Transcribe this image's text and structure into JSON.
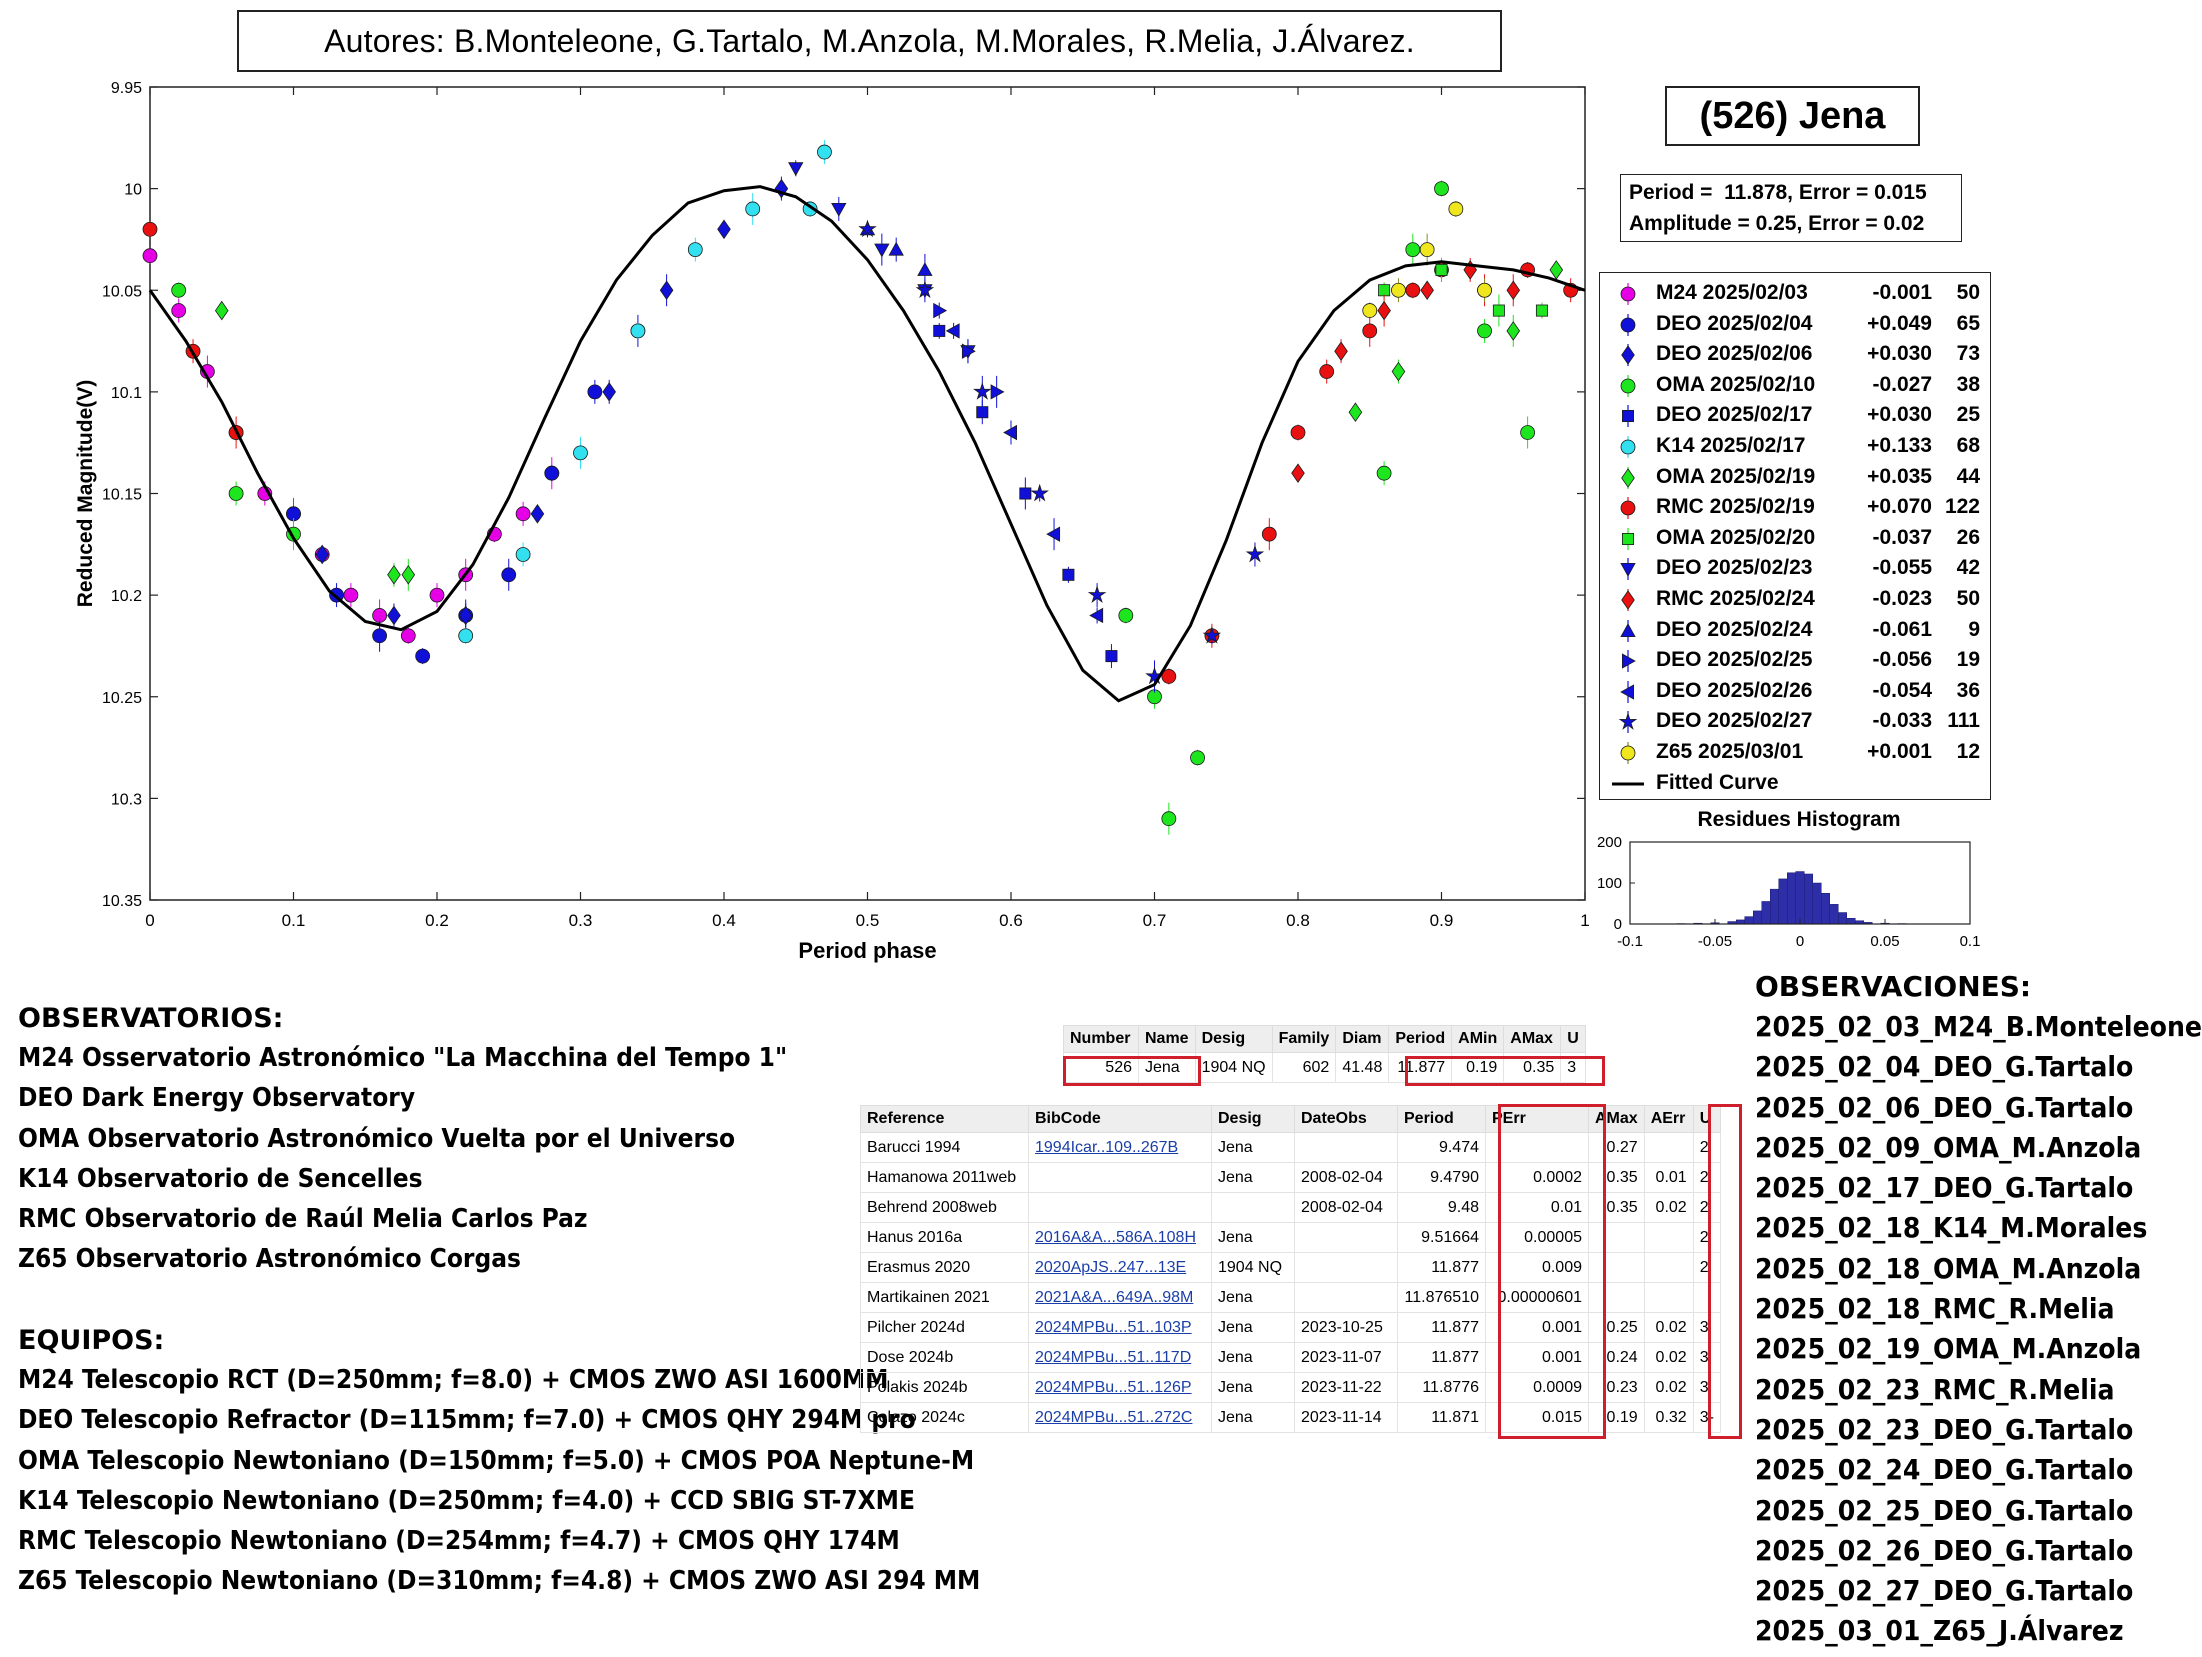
{
  "header": {
    "authors": "Autores: B.Monteleone, G.Tartalo, M.Anzola, M.Morales, R.Melia, J.Álvarez.",
    "asteroid_title": "(526) Jena"
  },
  "fit_info": {
    "period_line": "Period =  11.878, Error = 0.015",
    "amplitude_line": "Amplitude = 0.25, Error = 0.02"
  },
  "legend": [
    {
      "label": "M24 2025/02/03",
      "offset": "-0.001",
      "count": "50",
      "color": "#e600e6",
      "marker": "circle"
    },
    {
      "label": "DEO 2025/02/04",
      "offset": "+0.049",
      "count": "65",
      "color": "#1010d8",
      "marker": "circle"
    },
    {
      "label": "DEO 2025/02/06",
      "offset": "+0.030",
      "count": "73",
      "color": "#1010d8",
      "marker": "diamond"
    },
    {
      "label": "OMA 2025/02/10",
      "offset": "-0.027",
      "count": "38",
      "color": "#1ee61e",
      "marker": "circle"
    },
    {
      "label": "DEO 2025/02/17",
      "offset": "+0.030",
      "count": "25",
      "color": "#1010d8",
      "marker": "square"
    },
    {
      "label": "K14 2025/02/17",
      "offset": "+0.133",
      "count": "68",
      "color": "#33e0f0",
      "marker": "circle"
    },
    {
      "label": "OMA 2025/02/19",
      "offset": "+0.035",
      "count": "44",
      "color": "#1ee61e",
      "marker": "diamond"
    },
    {
      "label": "RMC 2025/02/19",
      "offset": "+0.070",
      "count": "122",
      "color": "#e81010",
      "marker": "circle"
    },
    {
      "label": "OMA 2025/02/20",
      "offset": "-0.037",
      "count": "26",
      "color": "#1ee61e",
      "marker": "square"
    },
    {
      "label": "DEO 2025/02/23",
      "offset": "-0.055",
      "count": "42",
      "color": "#1010d8",
      "marker": "triangle-down"
    },
    {
      "label": "RMC 2025/02/24",
      "offset": "-0.023",
      "count": "50",
      "color": "#e81010",
      "marker": "diamond"
    },
    {
      "label": "DEO 2025/02/24",
      "offset": "-0.061",
      "count": "9",
      "color": "#1010d8",
      "marker": "triangle-up"
    },
    {
      "label": "DEO 2025/02/25",
      "offset": "-0.056",
      "count": "19",
      "color": "#1010d8",
      "marker": "triangle-right"
    },
    {
      "label": "DEO 2025/02/26",
      "offset": "-0.054",
      "count": "36",
      "color": "#1010d8",
      "marker": "triangle-left"
    },
    {
      "label": "DEO 2025/02/27",
      "offset": "-0.033",
      "count": "111",
      "color": "#1010d8",
      "marker": "star"
    },
    {
      "label": "Z65 2025/03/01",
      "offset": "+0.001",
      "count": "12",
      "color": "#f0e61e",
      "marker": "circle"
    },
    {
      "label": "Fitted Curve",
      "offset": "",
      "count": "",
      "color": "#000000",
      "marker": "line"
    }
  ],
  "chart_data": [
    {
      "type": "scatter",
      "title": "",
      "xlabel": "Period phase",
      "ylabel": "Reduced Magnitude(V)",
      "xlim": [
        0,
        1
      ],
      "ylim": [
        9.95,
        10.35
      ],
      "y_reversed": true,
      "x_ticks": [
        "0",
        "0.1",
        "0.2",
        "0.3",
        "0.4",
        "0.5",
        "0.6",
        "0.7",
        "0.8",
        "0.9",
        "1"
      ],
      "y_ticks": [
        "9.95",
        "10",
        "10.05",
        "10.1",
        "10.15",
        "10.2",
        "10.25",
        "10.3",
        "10.35"
      ],
      "fitted_curve": {
        "name": "Fitted Curve",
        "x": [
          0.0,
          0.025,
          0.05,
          0.075,
          0.1,
          0.125,
          0.15,
          0.175,
          0.2,
          0.225,
          0.25,
          0.275,
          0.3,
          0.325,
          0.35,
          0.375,
          0.4,
          0.425,
          0.45,
          0.475,
          0.5,
          0.525,
          0.55,
          0.575,
          0.6,
          0.625,
          0.65,
          0.675,
          0.7,
          0.725,
          0.75,
          0.775,
          0.8,
          0.825,
          0.85,
          0.875,
          0.9,
          0.925,
          0.95,
          0.975,
          1.0
        ],
        "y": [
          10.05,
          10.075,
          10.105,
          10.14,
          10.172,
          10.198,
          10.213,
          10.217,
          10.208,
          10.185,
          10.152,
          10.113,
          10.075,
          10.045,
          10.023,
          10.007,
          10.001,
          9.999,
          10.004,
          10.016,
          10.035,
          10.06,
          10.09,
          10.125,
          10.165,
          10.205,
          10.237,
          10.252,
          10.244,
          10.215,
          10.173,
          10.125,
          10.085,
          10.06,
          10.045,
          10.038,
          10.036,
          10.038,
          10.04,
          10.044,
          10.05
        ]
      },
      "series": [
        {
          "name": "M24 2025/02/03",
          "x": [
            0.0,
            0.02,
            0.04,
            0.06,
            0.08,
            0.1,
            0.12,
            0.14,
            0.16,
            0.18,
            0.2,
            0.22,
            0.24,
            0.26,
            0.28
          ],
          "y": [
            10.033,
            10.06,
            10.09,
            10.12,
            10.15,
            10.16,
            10.18,
            10.2,
            10.21,
            10.22,
            10.2,
            10.19,
            10.17,
            10.16,
            10.14
          ]
        },
        {
          "name": "DEO 2025/02/04",
          "x": [
            0.1,
            0.13,
            0.16,
            0.19,
            0.22,
            0.25,
            0.28,
            0.31,
            0.34
          ],
          "y": [
            10.16,
            10.2,
            10.22,
            10.23,
            10.21,
            10.19,
            10.14,
            10.1,
            10.07
          ]
        },
        {
          "name": "DEO 2025/02/06",
          "x": [
            0.12,
            0.17,
            0.22,
            0.27,
            0.32,
            0.36,
            0.4,
            0.44
          ],
          "y": [
            10.18,
            10.21,
            10.21,
            10.16,
            10.1,
            10.05,
            10.02,
            10.0
          ]
        },
        {
          "name": "OMA 2025/02/10",
          "x": [
            0.02,
            0.06,
            0.1,
            0.68,
            0.7,
            0.71,
            0.73,
            0.86,
            0.88,
            0.9,
            0.93,
            0.96
          ],
          "y": [
            10.05,
            10.15,
            10.17,
            10.21,
            10.25,
            10.31,
            10.28,
            10.14,
            10.03,
            10.0,
            10.07,
            10.12
          ]
        },
        {
          "name": "DEO 2025/02/17",
          "x": [
            0.55,
            0.58,
            0.61,
            0.64,
            0.67
          ],
          "y": [
            10.07,
            10.11,
            10.15,
            10.19,
            10.23
          ]
        },
        {
          "name": "K14 2025/02/17",
          "x": [
            0.22,
            0.26,
            0.3,
            0.34,
            0.38,
            0.42,
            0.46,
            0.47
          ],
          "y": [
            10.22,
            10.18,
            10.13,
            10.07,
            10.03,
            10.01,
            10.01,
            9.982
          ]
        },
        {
          "name": "OMA 2025/02/19",
          "x": [
            0.05,
            0.17,
            0.18,
            0.84,
            0.87,
            0.95,
            0.98
          ],
          "y": [
            10.06,
            10.19,
            10.19,
            10.11,
            10.09,
            10.07,
            10.04
          ]
        },
        {
          "name": "RMC 2025/02/19",
          "x": [
            0.0,
            0.03,
            0.06,
            0.71,
            0.74,
            0.78,
            0.8,
            0.82,
            0.85,
            0.88,
            0.9,
            0.93,
            0.96,
            0.99
          ],
          "y": [
            10.02,
            10.08,
            10.12,
            10.24,
            10.22,
            10.17,
            10.12,
            10.09,
            10.07,
            10.05,
            10.04,
            10.05,
            10.04,
            10.05
          ]
        },
        {
          "name": "OMA 2025/02/20",
          "x": [
            0.86,
            0.9,
            0.94,
            0.97
          ],
          "y": [
            10.05,
            10.04,
            10.06,
            10.06
          ]
        },
        {
          "name": "DEO 2025/02/23",
          "x": [
            0.45,
            0.48,
            0.51,
            0.54,
            0.57
          ],
          "y": [
            9.99,
            10.01,
            10.03,
            10.05,
            10.08
          ]
        },
        {
          "name": "RMC 2025/02/24",
          "x": [
            0.8,
            0.83,
            0.86,
            0.89,
            0.92,
            0.95
          ],
          "y": [
            10.14,
            10.08,
            10.06,
            10.05,
            10.04,
            10.05
          ]
        },
        {
          "name": "DEO 2025/02/24",
          "x": [
            0.5,
            0.52,
            0.54
          ],
          "y": [
            10.02,
            10.03,
            10.04
          ]
        },
        {
          "name": "DEO 2025/02/25",
          "x": [
            0.55,
            0.57,
            0.59
          ],
          "y": [
            10.06,
            10.08,
            10.1
          ]
        },
        {
          "name": "DEO 2025/02/26",
          "x": [
            0.56,
            0.6,
            0.63,
            0.66
          ],
          "y": [
            10.07,
            10.12,
            10.17,
            10.21
          ]
        },
        {
          "name": "DEO 2025/02/27",
          "x": [
            0.5,
            0.54,
            0.58,
            0.62,
            0.66,
            0.7,
            0.74,
            0.77
          ],
          "y": [
            10.02,
            10.05,
            10.1,
            10.15,
            10.2,
            10.24,
            10.22,
            10.18
          ]
        },
        {
          "name": "Z65 2025/03/01",
          "x": [
            0.85,
            0.87,
            0.89,
            0.91,
            0.93
          ],
          "y": [
            10.06,
            10.05,
            10.03,
            10.01,
            10.05
          ]
        }
      ]
    },
    {
      "type": "bar",
      "title": "Residues Histogram",
      "xlim": [
        -0.1,
        0.1
      ],
      "ylim": [
        0,
        200
      ],
      "x_ticks": [
        "-0.1",
        "-0.05",
        "0",
        "0.05",
        "0.1"
      ],
      "y_ticks": [
        "0",
        "100",
        "200"
      ],
      "bin_centers": [
        -0.07,
        -0.06,
        -0.05,
        -0.04,
        -0.035,
        -0.03,
        -0.025,
        -0.02,
        -0.015,
        -0.01,
        -0.005,
        0.0,
        0.005,
        0.01,
        0.015,
        0.02,
        0.025,
        0.03,
        0.035,
        0.04,
        0.05,
        0.06
      ],
      "values": [
        1,
        2,
        3,
        6,
        10,
        18,
        32,
        55,
        85,
        110,
        125,
        128,
        122,
        100,
        75,
        48,
        28,
        14,
        8,
        4,
        2,
        1
      ]
    }
  ],
  "sections": {
    "observatories_title": "OBSERVATORIOS:",
    "observatories": [
      "M24 Osservatorio Astronómico \"La Macchina del Tempo 1\"",
      "DEO Dark Energy Observatory",
      "OMA Observatorio Astronómico Vuelta por el Universo",
      "K14 Observatorio de Sencelles",
      "RMC Observatorio de Raúl Melia Carlos Paz",
      "Z65 Observatorio Astronómico Corgas"
    ],
    "equipment_title": "EQUIPOS:",
    "equipment": [
      "M24 Telescopio RCT (D=250mm; f=8.0) + CMOS ZWO ASI 1600MM",
      "DEO Telescopio Refractor (D=115mm; f=7.0) + CMOS QHY 294M pro",
      "OMA Telescopio Newtoniano (D=150mm; f=5.0) + CMOS POA Neptune-M",
      "K14 Telescopio Newtoniano (D=250mm; f=4.0) + CCD SBIG ST-7XME",
      "RMC Telescopio Newtoniano (D=254mm; f=4.7) + CMOS QHY 174M",
      "Z65 Telescopio Newtoniano (D=310mm; f=4.8) + CMOS ZWO ASI 294 MM"
    ],
    "observations_title": "OBSERVACIONES:",
    "observations": [
      "2025_02_03_M24_B.Monteleone",
      "2025_02_04_DEO_G.Tartalo",
      "2025_02_06_DEO_G.Tartalo",
      "2025_02_09_OMA_M.Anzola",
      "2025_02_17_DEO_G.Tartalo",
      "2025_02_18_K14_M.Morales",
      "2025_02_18_OMA_M.Anzola",
      "2025_02_18_RMC_R.Melia",
      "2025_02_19_OMA_M.Anzola",
      "2025_02_23_RMC_R.Melia",
      "2025_02_23_DEO_G.Tartalo",
      "2025_02_24_DEO_G.Tartalo",
      "2025_02_25_DEO_G.Tartalo",
      "2025_02_26_DEO_G.Tartalo",
      "2025_02_27_DEO_G.Tartalo",
      "2025_03_01_Z65_J.Álvarez"
    ]
  },
  "lcdb_summary": {
    "headers": [
      "Number",
      "Name",
      "Desig",
      "Family",
      "Diam",
      "Period",
      "AMin",
      "AMax",
      "U"
    ],
    "row": [
      "526",
      "Jena",
      "1904 NQ",
      "602",
      "41.48",
      "11.877",
      "0.19",
      "0.35",
      "3"
    ]
  },
  "lcdb_table": {
    "headers": [
      "Reference",
      "BibCode",
      "Desig",
      "DateObs",
      "Period",
      "PErr",
      "AMax",
      "AErr",
      "U"
    ],
    "rows": [
      [
        "Barucci 1994",
        "1994Icar..109..267B",
        "Jena",
        "",
        "9.474",
        "",
        "0.27",
        "",
        "2"
      ],
      [
        "Hamanowa 2011web",
        "",
        "Jena",
        "2008-02-04",
        "9.4790",
        "0.0002",
        "0.35",
        "0.01",
        "2"
      ],
      [
        "Behrend 2008web",
        "",
        "",
        "2008-02-04",
        "9.48",
        "0.01",
        "0.35",
        "0.02",
        "2"
      ],
      [
        "Hanus 2016a",
        "2016A&A...586A.108H",
        "Jena",
        "",
        "9.51664",
        "0.00005",
        "",
        "",
        "2"
      ],
      [
        "Erasmus 2020",
        "2020ApJS..247...13E",
        "1904 NQ",
        "",
        "11.877",
        "0.009",
        "",
        "",
        "2"
      ],
      [
        "Martikainen 2021",
        "2021A&A...649A..98M",
        "Jena",
        "",
        "11.876510",
        "0.00000601",
        "",
        "",
        ""
      ],
      [
        "Pilcher 2024d",
        "2024MPBu...51..103P",
        "Jena",
        "2023-10-25",
        "11.877",
        "0.001",
        "0.25",
        "0.02",
        "3"
      ],
      [
        "Dose 2024b",
        "2024MPBu...51..117D",
        "Jena",
        "2023-11-07",
        "11.877",
        "0.001",
        "0.24",
        "0.02",
        "3"
      ],
      [
        "Polakis 2024b",
        "2024MPBu...51..126P",
        "Jena",
        "2023-11-22",
        "11.8776",
        "0.0009",
        "0.23",
        "0.02",
        "3"
      ],
      [
        "Colazo 2024c",
        "2024MPBu...51..272C",
        "Jena",
        "2023-11-14",
        "11.871",
        "0.015",
        "0.19",
        "0.32",
        "3-"
      ]
    ]
  },
  "colors": {
    "highlight": "#d01f2c",
    "fit_line": "#000000",
    "hist_bar": "#2e2ea8"
  }
}
